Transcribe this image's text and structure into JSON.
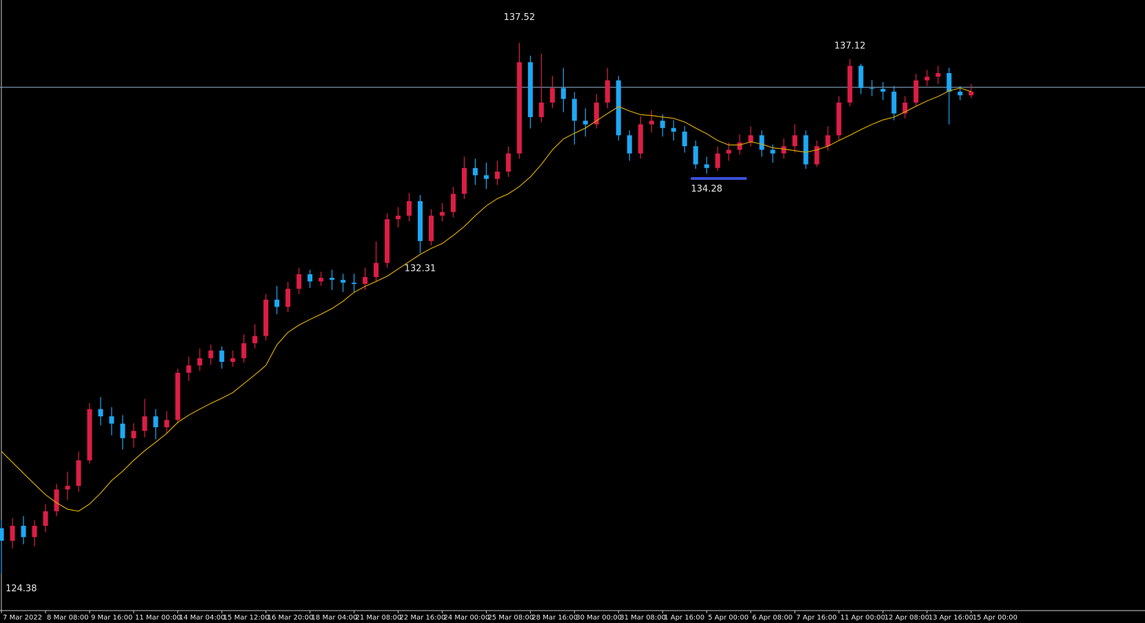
{
  "chart_data": {
    "type": "candlestick",
    "categories": [
      "7 Mar 2022",
      null,
      null,
      null,
      "8 Mar 08:00",
      null,
      null,
      null,
      "9 Mar 16:00",
      null,
      null,
      null,
      "11 Mar 00:00",
      null,
      null,
      null,
      "14 Mar 04:00",
      null,
      null,
      null,
      "15 Mar 12:00",
      null,
      null,
      null,
      "16 Mar 20:00",
      null,
      null,
      null,
      "18 Mar 04:00",
      null,
      null,
      null,
      "21 Mar 08:00",
      null,
      null,
      null,
      "22 Mar 16:00",
      null,
      null,
      null,
      "24 Mar 00:00",
      null,
      null,
      null,
      "25 Mar 08:00",
      null,
      null,
      null,
      "28 Mar 16:00",
      null,
      null,
      null,
      "30 Mar 00:00",
      null,
      null,
      null,
      "31 Mar 08:00",
      null,
      null,
      null,
      "1 Apr 16:00",
      null,
      null,
      null,
      "5 Apr 00:00",
      null,
      null,
      null,
      "6 Apr 08:00",
      null,
      null,
      null,
      "7 Apr 16:00",
      null,
      null,
      null,
      "11 Apr 00:00",
      null,
      null,
      null,
      "12 Apr 08:00",
      null,
      null,
      null,
      "13 Apr 16:00",
      null,
      null,
      null,
      "15 Apr 00:00"
    ],
    "open": [
      125.5,
      125.19,
      125.56,
      125.28,
      125.56,
      125.92,
      126.46,
      126.55,
      127.18,
      128.45,
      128.27,
      128.09,
      127.73,
      127.91,
      128.27,
      128.0,
      128.18,
      129.35,
      129.53,
      129.71,
      129.9,
      129.62,
      129.71,
      130.08,
      130.26,
      131.16,
      130.98,
      131.43,
      131.79,
      131.61,
      131.7,
      131.65,
      131.58,
      131.55,
      131.72,
      132.07,
      133.15,
      133.24,
      133.6,
      132.61,
      133.24,
      133.33,
      133.78,
      134.42,
      134.24,
      134.15,
      134.33,
      134.78,
      137.04,
      135.68,
      136.04,
      136.4,
      136.13,
      135.59,
      135.5,
      136.04,
      136.59,
      135.23,
      134.78,
      135.5,
      135.59,
      135.41,
      135.32,
      134.96,
      134.51,
      134.42,
      134.78,
      134.87,
      135.05,
      135.23,
      134.87,
      134.78,
      134.96,
      135.23,
      134.51,
      134.96,
      135.23,
      136.04,
      136.95,
      136.4,
      136.38,
      136.31,
      135.77,
      136.04,
      136.59,
      136.68,
      136.77,
      136.31,
      136.22
    ],
    "high": [
      125.7,
      125.75,
      125.8,
      125.7,
      126.1,
      126.6,
      126.9,
      127.4,
      128.6,
      128.75,
      128.5,
      128.3,
      128.1,
      128.7,
      128.45,
      128.4,
      129.45,
      129.75,
      129.95,
      130.05,
      130.0,
      129.9,
      130.3,
      130.55,
      131.3,
      131.5,
      131.6,
      131.95,
      131.9,
      131.85,
      131.9,
      131.8,
      131.8,
      131.95,
      132.6,
      133.3,
      133.45,
      133.8,
      133.75,
      133.4,
      133.55,
      133.95,
      134.7,
      134.65,
      134.55,
      134.6,
      134.95,
      137.52,
      137.2,
      137.25,
      136.7,
      136.9,
      136.3,
      135.9,
      136.25,
      136.9,
      136.7,
      135.35,
      135.7,
      135.85,
      135.75,
      135.6,
      135.45,
      135.1,
      134.7,
      134.95,
      135.05,
      135.25,
      135.45,
      135.35,
      135.0,
      135.15,
      135.5,
      135.35,
      135.1,
      135.45,
      136.2,
      137.12,
      137.0,
      136.6,
      136.55,
      136.45,
      136.2,
      136.75,
      136.85,
      136.95,
      136.9,
      136.45,
      136.5
    ],
    "low": [
      124.38,
      125.0,
      125.1,
      125.05,
      125.4,
      125.8,
      126.2,
      126.4,
      127.1,
      128.05,
      127.8,
      127.45,
      127.5,
      127.75,
      127.7,
      127.85,
      128.1,
      129.15,
      129.4,
      129.55,
      129.45,
      129.5,
      129.6,
      129.95,
      130.15,
      130.8,
      130.85,
      131.3,
      131.45,
      131.5,
      131.4,
      131.35,
      131.35,
      131.4,
      131.6,
      131.95,
      132.95,
      133.1,
      132.31,
      132.5,
      133.1,
      133.2,
      133.65,
      134.0,
      133.9,
      134.0,
      134.2,
      134.65,
      135.4,
      135.55,
      135.9,
      135.8,
      135.0,
      135.2,
      135.4,
      135.9,
      135.1,
      134.6,
      134.65,
      135.3,
      135.2,
      135.1,
      134.8,
      134.4,
      134.28,
      134.35,
      134.6,
      134.75,
      134.95,
      134.7,
      134.55,
      134.65,
      134.8,
      134.4,
      134.45,
      134.85,
      135.1,
      135.95,
      136.25,
      136.2,
      136.1,
      135.6,
      135.65,
      135.95,
      136.45,
      136.5,
      135.5,
      136.1,
      136.15
    ],
    "close": [
      125.19,
      125.56,
      125.28,
      125.56,
      125.92,
      126.46,
      126.55,
      127.18,
      128.45,
      128.27,
      128.09,
      127.73,
      127.91,
      128.27,
      128.0,
      128.18,
      129.35,
      129.53,
      129.71,
      129.9,
      129.62,
      129.71,
      130.08,
      130.26,
      131.16,
      130.98,
      131.43,
      131.79,
      131.61,
      131.7,
      131.65,
      131.58,
      131.55,
      131.72,
      132.07,
      133.15,
      133.24,
      133.6,
      132.61,
      133.24,
      133.33,
      133.78,
      134.42,
      134.24,
      134.15,
      134.33,
      134.78,
      137.04,
      135.68,
      136.04,
      136.4,
      136.13,
      135.59,
      135.5,
      136.04,
      136.59,
      135.23,
      134.78,
      135.5,
      135.59,
      135.41,
      135.32,
      134.96,
      134.51,
      134.42,
      134.78,
      134.87,
      135.05,
      135.23,
      134.87,
      134.78,
      134.96,
      135.23,
      134.51,
      134.96,
      135.23,
      136.04,
      136.95,
      136.4,
      136.38,
      136.31,
      135.77,
      136.04,
      136.59,
      136.68,
      136.77,
      136.31,
      136.22,
      136.31
    ],
    "up_color": "#dc1e46",
    "down_color": "#1ea8f5",
    "overlay": {
      "color": "#d9a800",
      "values": [
        127.4,
        127.13,
        126.86,
        126.59,
        126.33,
        126.13,
        125.97,
        125.92,
        126.1,
        126.37,
        126.68,
        126.91,
        127.18,
        127.42,
        127.63,
        127.85,
        128.12,
        128.3,
        128.45,
        128.59,
        128.72,
        128.86,
        129.08,
        129.3,
        129.53,
        130.04,
        130.35,
        130.53,
        130.67,
        130.8,
        130.94,
        131.12,
        131.34,
        131.49,
        131.61,
        131.74,
        131.92,
        132.1,
        132.28,
        132.43,
        132.55,
        132.75,
        132.97,
        133.24,
        133.48,
        133.66,
        133.78,
        133.96,
        134.2,
        134.51,
        134.87,
        135.14,
        135.28,
        135.41,
        135.59,
        135.77,
        135.94,
        135.83,
        135.74,
        135.72,
        135.68,
        135.65,
        135.56,
        135.41,
        135.27,
        135.1,
        134.99,
        134.99,
        135.07,
        135.01,
        134.92,
        134.89,
        134.85,
        134.81,
        134.87,
        134.96,
        135.1,
        135.23,
        135.37,
        135.5,
        135.61,
        135.68,
        135.81,
        135.95,
        136.08,
        136.19,
        136.33,
        136.4,
        136.31
      ]
    },
    "hline": 136.42,
    "hline_color": "#8fb0c8",
    "ylim": [
      123.46,
      138.58
    ]
  }
}
